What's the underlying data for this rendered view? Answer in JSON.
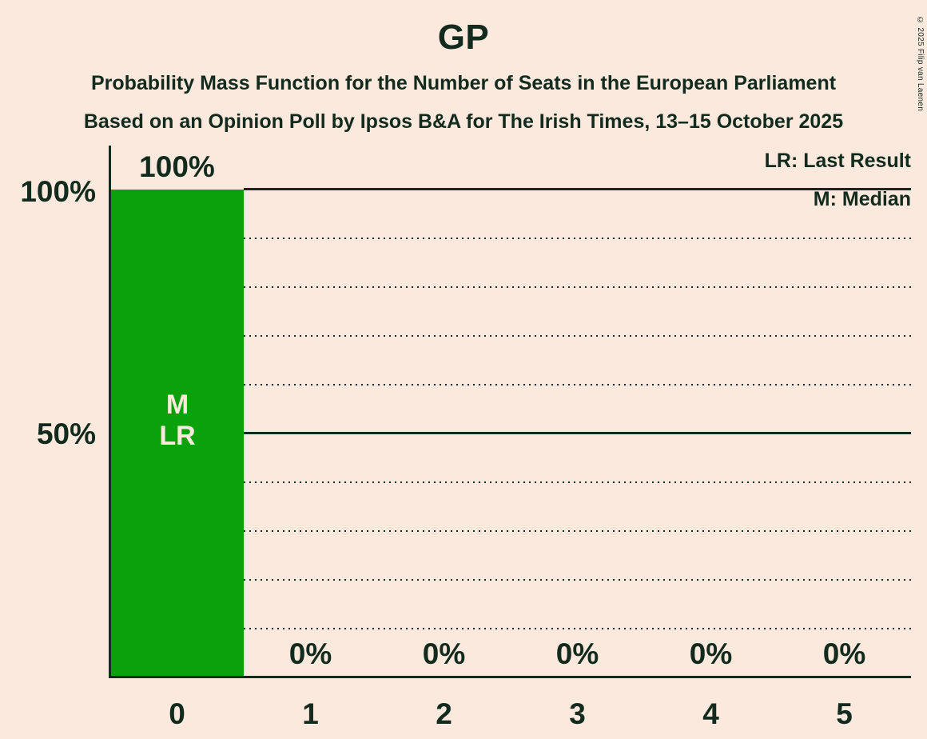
{
  "header": {
    "title": "GP",
    "subtitle1": "Probability Mass Function for the Number of Seats in the European Parliament",
    "subtitle2": "Based on an Opinion Poll by Ipsos B&A for The Irish Times, 13–15 October 2025"
  },
  "copyright": "© 2025 Filip van Laenen",
  "legend": {
    "lr": "LR: Last Result",
    "m": "M: Median"
  },
  "chart_data": {
    "type": "bar",
    "title": "GP",
    "categories": [
      "0",
      "1",
      "2",
      "3",
      "4",
      "5"
    ],
    "values": [
      100,
      0,
      0,
      0,
      0,
      0
    ],
    "value_labels": [
      "100%",
      "0%",
      "0%",
      "0%",
      "0%",
      "0%"
    ],
    "ylim": [
      0,
      100
    ],
    "y_tick_labels": [
      "100%",
      "50%"
    ],
    "grid": "dotted horizontal lines every 10%, solid lines at 50% and 100%",
    "legend_position": "top-right",
    "annotations": {
      "category": "0",
      "median_label": "M",
      "last_result_label": "LR"
    },
    "colors": {
      "background": "#FAE9DC",
      "text": "#132A1E",
      "bar": "#0AA10A",
      "bar_label_text": "#FAE9DC"
    }
  }
}
